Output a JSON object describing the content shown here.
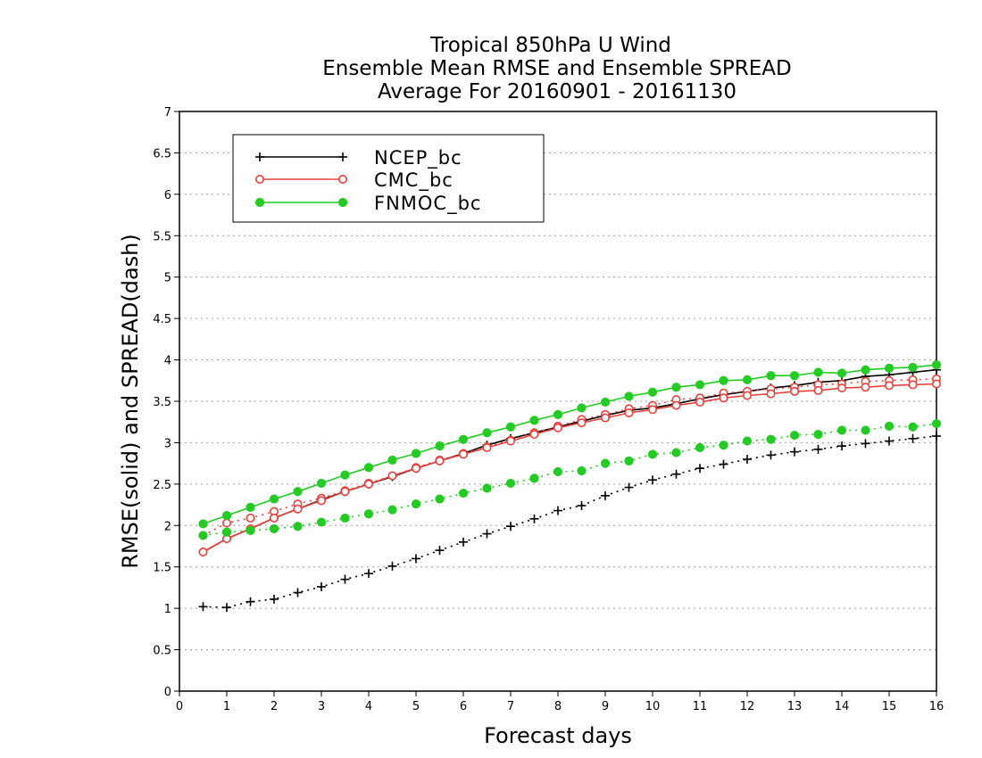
{
  "chart_data": {
    "type": "line",
    "title": [
      "Tropical 850hPa U Wind",
      "Ensemble Mean RMSE and Ensemble SPREAD",
      "Average For 20160901 - 20161130"
    ],
    "xlabel": "Forecast days",
    "ylabel": "RMSE(solid) and SPREAD(dash)",
    "xlim": [
      0,
      16
    ],
    "ylim": [
      0,
      7
    ],
    "xticks": [
      "0",
      "1",
      "2",
      "3",
      "4",
      "5",
      "6",
      "7",
      "8",
      "9",
      "10",
      "11",
      "12",
      "13",
      "14",
      "15",
      "16"
    ],
    "yticks": [
      "0",
      "0.5",
      "1",
      "1.5",
      "2",
      "2.5",
      "3",
      "3.5",
      "4",
      "4.5",
      "5",
      "5.5",
      "6",
      "6.5",
      "7"
    ],
    "grid": "horizontal dotted",
    "legend_position": "upper-left",
    "x": [
      0.5,
      1,
      1.5,
      2,
      2.5,
      3,
      3.5,
      4,
      4.5,
      5,
      5.5,
      6,
      6.5,
      7,
      7.5,
      8,
      8.5,
      9,
      9.5,
      10,
      10.5,
      11,
      11.5,
      12,
      12.5,
      13,
      13.5,
      14,
      14.5,
      15,
      15.5,
      16
    ],
    "series": [
      {
        "name": "NCEP_bc",
        "color": "#000000",
        "marker": "plus",
        "rmse": [
          1.68,
          1.84,
          1.96,
          2.09,
          2.2,
          2.31,
          2.41,
          2.5,
          2.59,
          2.69,
          2.78,
          2.87,
          2.97,
          3.05,
          3.12,
          3.19,
          3.26,
          3.33,
          3.39,
          3.42,
          3.47,
          3.53,
          3.58,
          3.62,
          3.66,
          3.69,
          3.73,
          3.75,
          3.8,
          3.82,
          3.85,
          3.88
        ],
        "spread": [
          1.02,
          1.01,
          1.08,
          1.11,
          1.19,
          1.26,
          1.35,
          1.42,
          1.51,
          1.6,
          1.7,
          1.8,
          1.9,
          1.99,
          2.08,
          2.18,
          2.24,
          2.36,
          2.46,
          2.55,
          2.62,
          2.69,
          2.74,
          2.8,
          2.85,
          2.89,
          2.92,
          2.96,
          2.99,
          3.02,
          3.05,
          3.08
        ]
      },
      {
        "name": "CMC_bc",
        "color": "#e8413c",
        "marker": "open-circle",
        "rmse": [
          1.68,
          1.84,
          1.96,
          2.09,
          2.2,
          2.3,
          2.41,
          2.5,
          2.6,
          2.69,
          2.78,
          2.86,
          2.94,
          3.02,
          3.1,
          3.18,
          3.24,
          3.3,
          3.36,
          3.4,
          3.45,
          3.49,
          3.54,
          3.57,
          3.59,
          3.62,
          3.63,
          3.66,
          3.67,
          3.69,
          3.7,
          3.71
        ],
        "spread": [
          1.88,
          2.03,
          2.09,
          2.17,
          2.26,
          2.33,
          2.42,
          2.51,
          2.6,
          2.7,
          2.79,
          2.87,
          2.95,
          3.03,
          3.12,
          3.2,
          3.28,
          3.34,
          3.41,
          3.45,
          3.52,
          3.54,
          3.6,
          3.62,
          3.65,
          3.67,
          3.7,
          3.71,
          3.74,
          3.75,
          3.76,
          3.77
        ]
      },
      {
        "name": "FNMOC_bc",
        "color": "#22cc22",
        "marker": "filled-circle",
        "rmse": [
          2.02,
          2.12,
          2.22,
          2.32,
          2.41,
          2.51,
          2.61,
          2.7,
          2.79,
          2.87,
          2.96,
          3.04,
          3.12,
          3.19,
          3.27,
          3.34,
          3.42,
          3.49,
          3.56,
          3.61,
          3.67,
          3.7,
          3.75,
          3.76,
          3.81,
          3.81,
          3.85,
          3.84,
          3.88,
          3.9,
          3.91,
          3.94
        ],
        "spread": [
          1.88,
          1.92,
          1.94,
          1.96,
          1.99,
          2.04,
          2.09,
          2.14,
          2.19,
          2.26,
          2.32,
          2.39,
          2.45,
          2.51,
          2.57,
          2.65,
          2.66,
          2.75,
          2.78,
          2.86,
          2.88,
          2.94,
          2.97,
          3.02,
          3.04,
          3.09,
          3.1,
          3.15,
          3.15,
          3.2,
          3.19,
          3.23
        ]
      }
    ]
  }
}
